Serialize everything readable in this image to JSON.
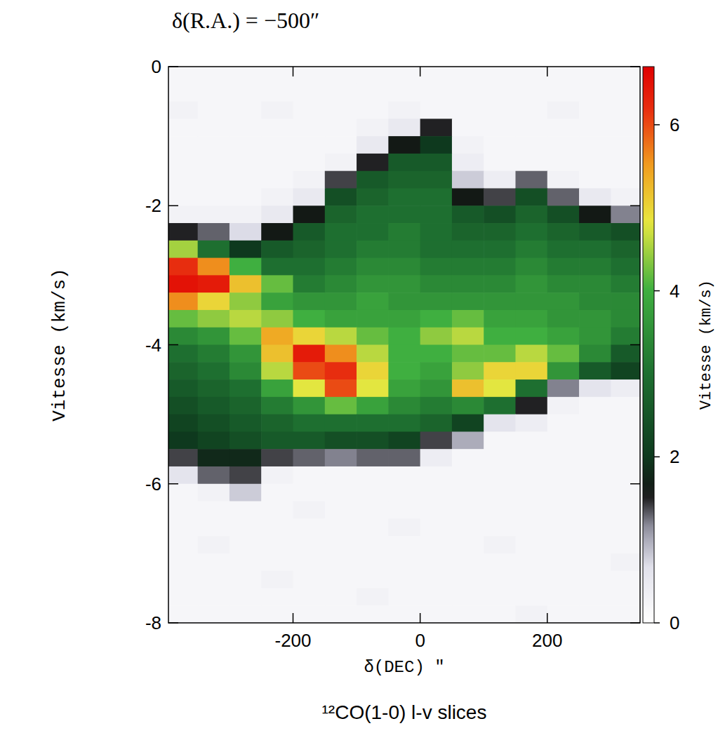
{
  "chart_data": {
    "type": "heatmap",
    "title": "δ(R.A.) = −500″",
    "x_label": "δ(DEC) ″",
    "y_label": "Vitesse (km/s)",
    "caption": "¹²CO(1-0) l-v slices",
    "xlim": [
      -396,
      346
    ],
    "ylim": [
      -8,
      0
    ],
    "xticks": [
      -200,
      0,
      200
    ],
    "yticks": [
      0,
      -2,
      -4,
      -6,
      -8
    ],
    "x_bins": [
      -400,
      -350,
      -300,
      -250,
      -200,
      -150,
      -100,
      -50,
      0,
      50,
      100,
      150,
      200,
      250,
      300,
      350
    ],
    "v_bins": [
      0,
      -0.25,
      -0.5,
      -0.75,
      -1,
      -1.25,
      -1.5,
      -1.75,
      -2,
      -2.25,
      -2.5,
      -2.75,
      -3,
      -3.25,
      -3.5,
      -3.75,
      -4,
      -4.25,
      -4.5,
      -4.75,
      -5,
      -5.25,
      -5.5,
      -5.75,
      -6,
      -6.25,
      -6.5,
      -6.75,
      -7,
      -7.25,
      -7.5,
      -7.75,
      -8
    ],
    "cells": [
      [
        0.2,
        0.2,
        0.2,
        0.2,
        0.2,
        0.2,
        0.2,
        0.2,
        0.2,
        0.2,
        0.2,
        0.2,
        0.2,
        0.2,
        0.2
      ],
      [
        0.2,
        0.2,
        0.2,
        0.2,
        0.2,
        0.2,
        0.2,
        0.2,
        0.2,
        0.2,
        0.2,
        0.2,
        0.2,
        0.2,
        0.2
      ],
      [
        0.3,
        0.2,
        0.2,
        0.3,
        0.2,
        0.2,
        0.2,
        0.3,
        0.2,
        0.2,
        0.2,
        0.2,
        0.3,
        0.2,
        0.2
      ],
      [
        0.2,
        0.2,
        0.2,
        0.2,
        0.2,
        0.2,
        0.3,
        0.5,
        1.5,
        0.2,
        0.2,
        0.2,
        0.2,
        0.2,
        0.2
      ],
      [
        0.2,
        0.2,
        0.2,
        0.2,
        0.2,
        0.2,
        0.5,
        1.6,
        2.0,
        0.3,
        0.2,
        0.2,
        0.2,
        0.2,
        0.2
      ],
      [
        0.2,
        0.2,
        0.2,
        0.2,
        0.2,
        0.3,
        1.5,
        2.6,
        2.6,
        0.4,
        0.2,
        0.2,
        0.2,
        0.2,
        0.2
      ],
      [
        0.2,
        0.2,
        0.2,
        0.2,
        0.3,
        1.4,
        2.6,
        2.8,
        2.8,
        0.8,
        0.4,
        1.3,
        0.3,
        0.2,
        0.2
      ],
      [
        0.2,
        0.2,
        0.2,
        0.3,
        0.5,
        2.4,
        2.8,
        3.0,
        3.0,
        1.6,
        1.4,
        2.4,
        1.3,
        0.5,
        0.3
      ],
      [
        0.3,
        0.3,
        0.3,
        0.5,
        1.6,
        2.8,
        3.0,
        3.0,
        3.0,
        2.6,
        2.4,
        2.8,
        2.4,
        1.6,
        1.2
      ],
      [
        1.5,
        1.3,
        0.7,
        1.6,
        2.6,
        3.0,
        3.0,
        3.2,
        3.0,
        2.8,
        2.8,
        3.0,
        2.8,
        2.6,
        2.4
      ],
      [
        4.5,
        3.0,
        2.0,
        2.6,
        2.8,
        3.0,
        3.2,
        3.2,
        3.0,
        3.0,
        3.0,
        3.2,
        3.0,
        3.0,
        2.8
      ],
      [
        6.2,
        5.6,
        4.0,
        3.0,
        3.0,
        3.2,
        3.4,
        3.4,
        3.2,
        3.2,
        3.2,
        3.4,
        3.2,
        3.2,
        3.0
      ],
      [
        6.5,
        6.4,
        5.2,
        4.2,
        3.2,
        3.4,
        3.6,
        3.6,
        3.4,
        3.4,
        3.4,
        3.6,
        3.4,
        3.4,
        3.2
      ],
      [
        5.6,
        5.0,
        4.4,
        3.8,
        3.6,
        3.6,
        3.8,
        3.6,
        3.6,
        3.6,
        3.6,
        3.6,
        3.6,
        3.4,
        3.4
      ],
      [
        4.2,
        4.4,
        4.6,
        4.4,
        4.0,
        3.8,
        3.8,
        3.8,
        4.0,
        4.2,
        3.8,
        3.8,
        3.6,
        3.6,
        3.4
      ],
      [
        3.4,
        3.6,
        4.2,
        5.4,
        5.0,
        4.6,
        4.2,
        4.0,
        4.4,
        4.6,
        4.0,
        4.0,
        3.8,
        3.6,
        3.2
      ],
      [
        3.0,
        3.2,
        3.6,
        5.2,
        6.4,
        5.6,
        4.6,
        4.0,
        4.0,
        4.2,
        4.2,
        4.6,
        4.2,
        3.4,
        2.6
      ],
      [
        2.8,
        3.0,
        3.4,
        4.6,
        6.0,
        6.2,
        5.0,
        4.0,
        3.8,
        4.4,
        5.0,
        5.0,
        3.6,
        2.6,
        2.2
      ],
      [
        2.6,
        2.8,
        3.0,
        3.8,
        4.8,
        6.0,
        4.8,
        3.8,
        3.6,
        5.2,
        4.8,
        3.0,
        1.2,
        0.6,
        0.4
      ],
      [
        2.4,
        2.6,
        2.8,
        3.2,
        3.6,
        4.2,
        3.8,
        3.4,
        3.2,
        3.4,
        3.0,
        1.5,
        0.3,
        0.2,
        0.2
      ],
      [
        2.2,
        2.4,
        2.6,
        2.8,
        3.0,
        3.0,
        3.0,
        3.0,
        2.8,
        2.2,
        0.6,
        0.4,
        0.2,
        0.2,
        0.2
      ],
      [
        2.0,
        2.2,
        2.4,
        2.6,
        2.6,
        2.4,
        2.4,
        2.2,
        1.4,
        1.0,
        0.2,
        0.2,
        0.2,
        0.2,
        0.2
      ],
      [
        1.4,
        1.8,
        1.8,
        1.4,
        1.3,
        1.2,
        1.3,
        1.3,
        0.4,
        0.2,
        0.2,
        0.2,
        0.2,
        0.2,
        0.2
      ],
      [
        0.6,
        1.3,
        1.4,
        0.3,
        0.2,
        0.2,
        0.2,
        0.2,
        0.2,
        0.2,
        0.2,
        0.2,
        0.2,
        0.2,
        0.2
      ],
      [
        0.2,
        0.3,
        0.8,
        0.2,
        0.2,
        0.2,
        0.2,
        0.2,
        0.2,
        0.2,
        0.2,
        0.2,
        0.2,
        0.2,
        0.2
      ],
      [
        0.2,
        0.2,
        0.2,
        0.2,
        0.3,
        0.2,
        0.2,
        0.2,
        0.2,
        0.2,
        0.2,
        0.2,
        0.2,
        0.2,
        0.2
      ],
      [
        0.2,
        0.2,
        0.2,
        0.2,
        0.2,
        0.2,
        0.2,
        0.3,
        0.2,
        0.2,
        0.2,
        0.2,
        0.2,
        0.2,
        0.2
      ],
      [
        0.2,
        0.3,
        0.2,
        0.2,
        0.2,
        0.2,
        0.2,
        0.2,
        0.2,
        0.2,
        0.3,
        0.2,
        0.2,
        0.2,
        0.2
      ],
      [
        0.2,
        0.2,
        0.2,
        0.2,
        0.2,
        0.2,
        0.2,
        0.2,
        0.2,
        0.2,
        0.2,
        0.2,
        0.2,
        0.2,
        0.3
      ],
      [
        0.2,
        0.2,
        0.2,
        0.3,
        0.2,
        0.2,
        0.2,
        0.2,
        0.2,
        0.2,
        0.2,
        0.2,
        0.2,
        0.2,
        0.2
      ],
      [
        0.2,
        0.2,
        0.2,
        0.2,
        0.2,
        0.2,
        0.3,
        0.2,
        0.2,
        0.2,
        0.2,
        0.2,
        0.2,
        0.2,
        0.2
      ],
      [
        0.2,
        0.2,
        0.2,
        0.2,
        0.2,
        0.2,
        0.2,
        0.2,
        0.2,
        0.2,
        0.2,
        0.3,
        0.2,
        0.2,
        0.2
      ]
    ],
    "colorbar": {
      "label": "Vitesse (km/s)",
      "range": [
        0,
        6.7
      ],
      "ticks": [
        0,
        2,
        4,
        6
      ]
    }
  }
}
